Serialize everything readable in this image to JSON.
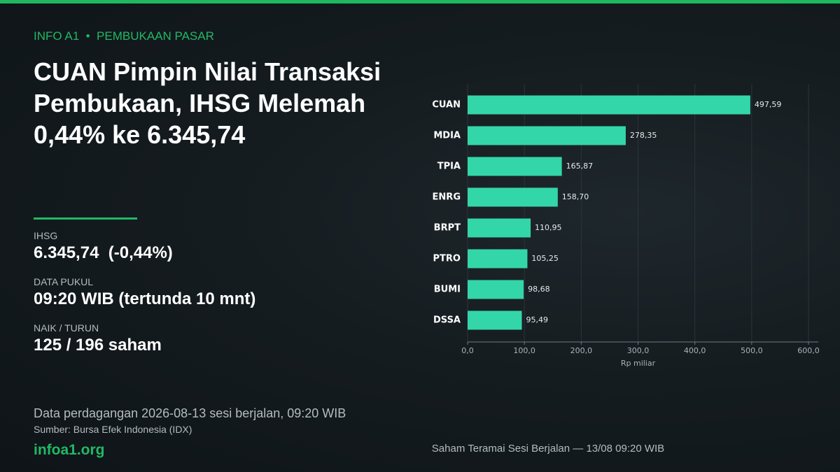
{
  "header": {
    "kicker": "INFO A1  •  PEMBUKAAN PASAR",
    "title": "CUAN Pimpin Nilai Transaksi Pembukaan, IHSG Melemah 0,44% ke 6.345,74"
  },
  "stats": [
    {
      "label": "IHSG",
      "value": "6.345,74  (-0,44%)"
    },
    {
      "label": "DATA PUKUL",
      "value": "09:20 WIB (tertunda 10 mnt)"
    },
    {
      "label": "NAIK / TURUN",
      "value": "125 / 196 saham"
    }
  ],
  "footer": {
    "note": "Data perdagangan 2026-08-13 sesi berjalan, 09:20 WIB",
    "source": "Sumber: Bursa Efek Indonesia (IDX)",
    "site": "infoa1.org"
  },
  "chart_data": {
    "type": "barh",
    "caption": "Saham Teramai Sesi Berjalan — 13/08 09:20 WIB",
    "x_label": "Rp miliar",
    "categories": [
      "CUAN",
      "MDIA",
      "TPIA",
      "ENRG",
      "BRPT",
      "PTRO",
      "BUMI",
      "DSSA"
    ],
    "values": [
      497.59,
      278.35,
      165.87,
      158.7,
      110.95,
      105.25,
      98.68,
      95.49
    ],
    "value_labels": [
      "497,59",
      "278,35",
      "165,87",
      "158,70",
      "110,95",
      "105,25",
      "98,68",
      "95,49"
    ],
    "color": "#33d6a9",
    "xlim": [
      0,
      600
    ],
    "xticks": [
      {
        "value": 0,
        "label": "0,0"
      },
      {
        "value": 100,
        "label": "100,0"
      },
      {
        "value": 200,
        "label": "200,0"
      },
      {
        "value": 300,
        "label": "300,0"
      },
      {
        "value": 400,
        "label": "400,0"
      },
      {
        "value": 500,
        "label": "500,0"
      },
      {
        "value": 600,
        "label": "600,0"
      }
    ],
    "grid": true
  }
}
